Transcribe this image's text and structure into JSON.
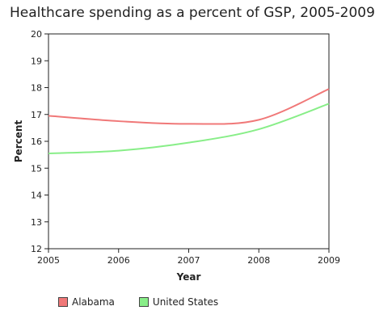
{
  "chart_data": {
    "type": "line",
    "title": "Healthcare spending as a percent of GSP, 2005-2009",
    "xlabel": "Year",
    "ylabel": "Percent",
    "x": [
      2005,
      2006,
      2007,
      2008,
      2009
    ],
    "xlim": [
      2005,
      2009
    ],
    "ylim": [
      12,
      20
    ],
    "yticks": [
      12,
      13,
      14,
      15,
      16,
      17,
      18,
      19,
      20
    ],
    "grid": false,
    "legend_position": "bottom",
    "series": [
      {
        "name": "Alabama",
        "color": "#f07878",
        "values": [
          16.95,
          16.75,
          16.65,
          16.8,
          17.95
        ]
      },
      {
        "name": "United States",
        "color": "#88ee88",
        "values": [
          15.55,
          15.65,
          15.95,
          16.45,
          17.4
        ]
      }
    ]
  }
}
